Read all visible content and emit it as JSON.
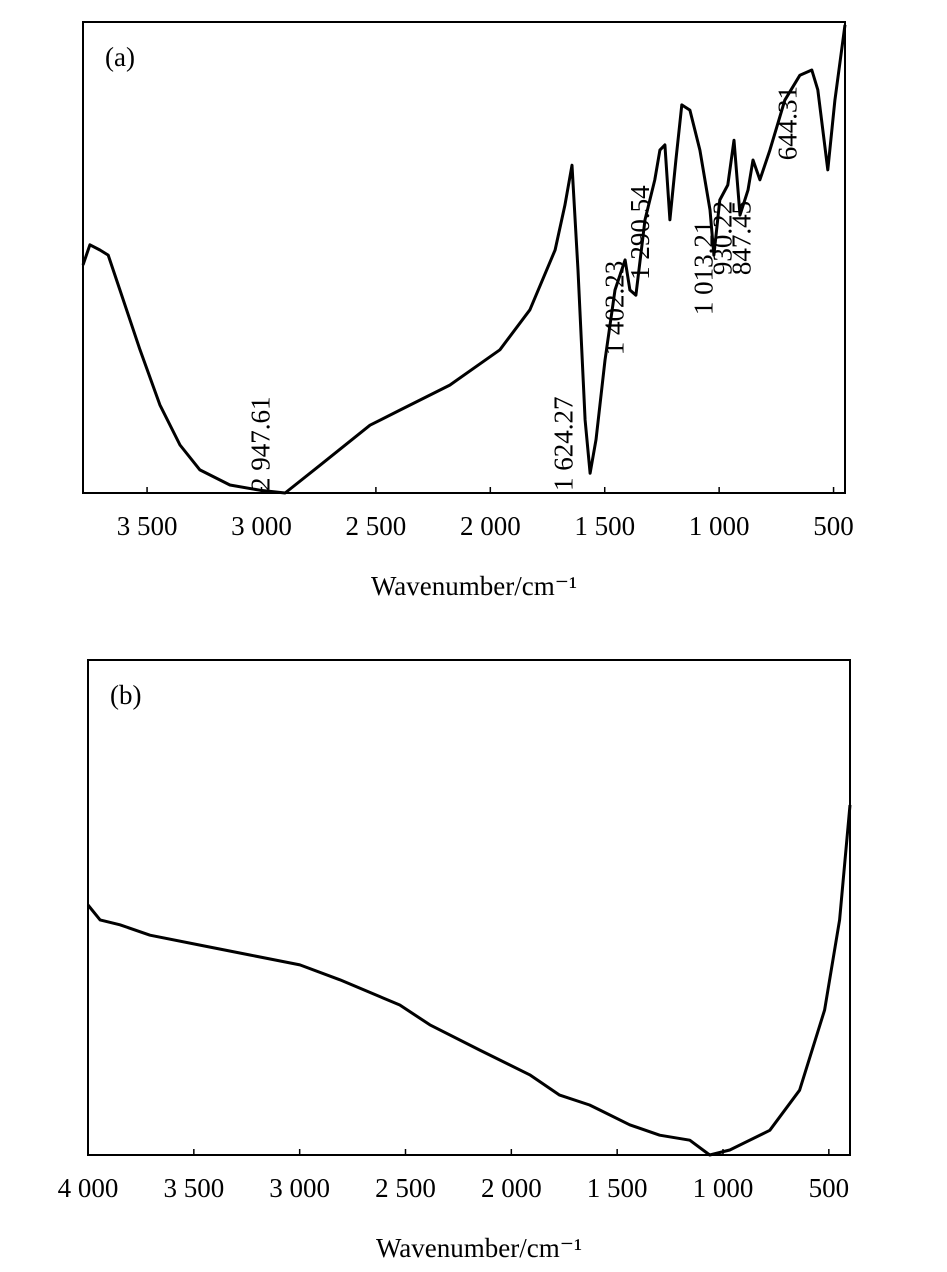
{
  "chart_data": [
    {
      "type": "line",
      "label": "(a)",
      "xlabel": "Wavenumber/cm⁻¹",
      "color": "#000000",
      "xlim": [
        3780,
        450
      ],
      "ylim": [
        0,
        100
      ],
      "xticks": [
        {
          "value": 3500,
          "label": "3 500"
        },
        {
          "value": 3000,
          "label": "3 000"
        },
        {
          "value": 2500,
          "label": "2 500"
        },
        {
          "value": 2000,
          "label": "2 000"
        },
        {
          "value": 1500,
          "label": "1 500"
        },
        {
          "value": 1000,
          "label": "1 000"
        },
        500
      ],
      "x": [
        3780,
        3750,
        3706,
        3670,
        3618,
        3531,
        3444,
        3356,
        3269,
        3138,
        3007,
        2897,
        2744,
        2526,
        2395,
        2177,
        1958,
        1827,
        1717,
        1674,
        1643,
        1617,
        1586,
        1564,
        1538,
        1499,
        1455,
        1411,
        1390,
        1364,
        1324,
        1281,
        1259,
        1237,
        1215,
        1189,
        1163,
        1128,
        1084,
        1040,
        1023,
        997,
        962,
        935,
        909,
        874,
        852,
        822,
        778,
        713,
        647,
        595,
        569,
        525,
        494,
        450
      ],
      "values": [
        48.4,
        52.7,
        51.6,
        50.5,
        43,
        30.4,
        18.7,
        10.2,
        4.9,
        1.7,
        0.6,
        0,
        5.9,
        14.4,
        17.6,
        22.9,
        30.4,
        38.9,
        51.6,
        61.1,
        69.6,
        47.3,
        15.5,
        4.2,
        11.3,
        28.2,
        43.1,
        49.5,
        43.1,
        42,
        58,
        66.5,
        72.8,
        73.9,
        58,
        70.7,
        82.4,
        81.3,
        72.8,
        60.1,
        50.5,
        62.2,
        65.4,
        74.9,
        59,
        64.3,
        70.7,
        66.5,
        72.8,
        83.4,
        88.7,
        89.8,
        85.6,
        68.6,
        83.4,
        99.4
      ],
      "annotations": [
        {
          "x": 2947.61,
          "label": "2 947.61"
        },
        {
          "x": 1624.27,
          "label": "1 624.27"
        },
        {
          "x": 1402.23,
          "label": "1 402.23"
        },
        {
          "x": 1290.54,
          "label": "1 290.54"
        },
        {
          "x": 1013.21,
          "label": "1 013.21"
        },
        {
          "x": 930.22,
          "label": "930.22"
        },
        {
          "x": 847.45,
          "label": "847.45"
        },
        {
          "x": 644.31,
          "label": "644.31"
        }
      ]
    },
    {
      "type": "line",
      "label": "(b)",
      "xlabel": "Wavenumber/cm⁻¹",
      "color": "#000000",
      "xlim": [
        4000,
        400
      ],
      "ylim": [
        0,
        100
      ],
      "xticks": [
        {
          "value": 4000,
          "label": "4 000"
        },
        {
          "value": 3500,
          "label": "3 500"
        },
        {
          "value": 3000,
          "label": "3 000"
        },
        {
          "value": 2500,
          "label": "2 500"
        },
        {
          "value": 2000,
          "label": "2 000"
        },
        {
          "value": 1500,
          "label": "1 500"
        },
        {
          "value": 1000,
          "label": "1 000"
        },
        500
      ],
      "x": [
        4000,
        3943,
        3849,
        3707,
        3471,
        3235,
        2999,
        2810,
        2527,
        2385,
        2149,
        1913,
        1772,
        1630,
        1582,
        1441,
        1299,
        1157,
        1063,
        968,
        779,
        638,
        520,
        449,
        400
      ],
      "values": [
        50.5,
        47.5,
        46.5,
        44.4,
        42.4,
        40.4,
        38.4,
        35.4,
        30.3,
        26.3,
        21.2,
        16.2,
        12.1,
        10.1,
        9.1,
        6.1,
        4,
        3,
        0,
        1,
        5,
        13.1,
        29.3,
        47.5,
        70.7
      ]
    }
  ]
}
